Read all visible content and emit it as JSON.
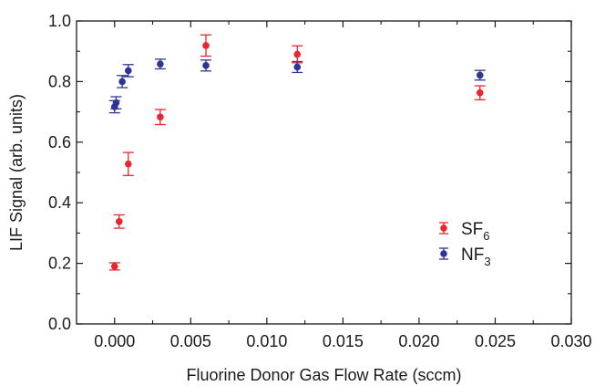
{
  "chart_data": {
    "type": "scatter",
    "title": "",
    "xlabel": "Fluorine Donor Gas Flow Rate (sccm)",
    "ylabel": "LIF Signal (arb. units)",
    "xlim": [
      -0.0025,
      0.03
    ],
    "ylim": [
      0.0,
      1.0
    ],
    "xticks": [
      0.0,
      0.005,
      0.01,
      0.015,
      0.02,
      0.025,
      0.03
    ],
    "xtick_labels": [
      "0.000",
      "0.005",
      "0.010",
      "0.015",
      "0.020",
      "0.025",
      "0.030"
    ],
    "yticks": [
      0.0,
      0.2,
      0.4,
      0.6,
      0.8,
      1.0
    ],
    "ytick_labels": [
      "0.0",
      "0.2",
      "0.4",
      "0.6",
      "0.8",
      "1.0"
    ],
    "grid": false,
    "legend_position": "right",
    "series": [
      {
        "name": "SF",
        "name_subscript": "6",
        "color": "#e8262b",
        "points": [
          {
            "x": 0.0,
            "y": 0.19,
            "err": 0.012
          },
          {
            "x": 0.0003,
            "y": 0.338,
            "err": 0.022
          },
          {
            "x": 0.0009,
            "y": 0.528,
            "err": 0.038
          },
          {
            "x": 0.003,
            "y": 0.683,
            "err": 0.025
          },
          {
            "x": 0.006,
            "y": 0.919,
            "err": 0.035
          },
          {
            "x": 0.012,
            "y": 0.89,
            "err": 0.028
          },
          {
            "x": 0.024,
            "y": 0.763,
            "err": 0.023
          }
        ]
      },
      {
        "name": "NF",
        "name_subscript": "3",
        "color": "#2f3591",
        "points": [
          {
            "x": 0.0,
            "y": 0.717,
            "err": 0.02
          },
          {
            "x": 0.0001,
            "y": 0.73,
            "err": 0.02
          },
          {
            "x": 0.0005,
            "y": 0.8,
            "err": 0.02
          },
          {
            "x": 0.0009,
            "y": 0.836,
            "err": 0.02
          },
          {
            "x": 0.003,
            "y": 0.858,
            "err": 0.016
          },
          {
            "x": 0.006,
            "y": 0.853,
            "err": 0.018
          },
          {
            "x": 0.012,
            "y": 0.848,
            "err": 0.018
          },
          {
            "x": 0.024,
            "y": 0.821,
            "err": 0.016
          }
        ]
      }
    ]
  }
}
